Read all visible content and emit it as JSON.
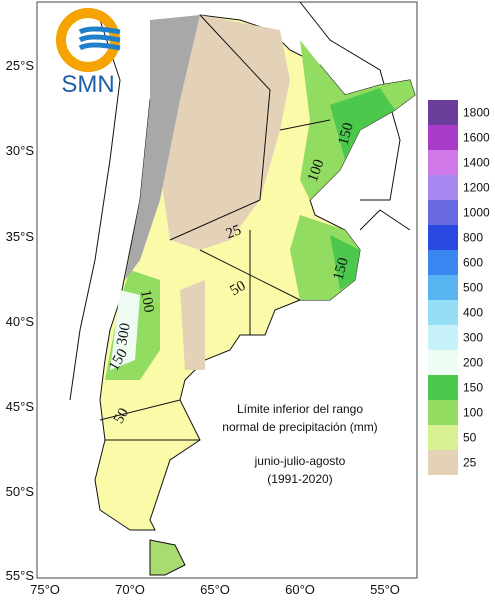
{
  "logo": "SMN",
  "lat_labels": [
    "25°S",
    "30°S",
    "35°S",
    "40°S",
    "45°S",
    "50°S",
    "55°S"
  ],
  "lon_labels": [
    "75°O",
    "70°O",
    "65°O",
    "60°O",
    "55°O"
  ],
  "contour_labels": [
    "150",
    "100",
    "25",
    "50",
    "150",
    "100",
    "300",
    "150",
    "50"
  ],
  "annotation": {
    "title_lines": [
      "Límite inferior del rango",
      "normal de precipitación (mm)"
    ],
    "period_lines": [
      "junio-julio-agosto",
      "(1991-2020)"
    ]
  },
  "legend": [
    {
      "label": "1800",
      "color": "#6a3d9a"
    },
    {
      "label": "1600",
      "color": "#a83cc8"
    },
    {
      "label": "1400",
      "color": "#d078e8"
    },
    {
      "label": "1200",
      "color": "#a888f0"
    },
    {
      "label": "1000",
      "color": "#6a6ae0"
    },
    {
      "label": "800",
      "color": "#2848e0"
    },
    {
      "label": "600",
      "color": "#3a86f0"
    },
    {
      "label": "500",
      "color": "#58b4f0"
    },
    {
      "label": "400",
      "color": "#96def6"
    },
    {
      "label": "300",
      "color": "#c8f2fa"
    },
    {
      "label": "200",
      "color": "#eefcf4"
    },
    {
      "label": "150",
      "color": "#4cc84c"
    },
    {
      "label": "100",
      "color": "#92dc62"
    },
    {
      "label": "50",
      "color": "#d6f092"
    },
    {
      "label": "25",
      "color": "#e4d2b8"
    }
  ]
}
